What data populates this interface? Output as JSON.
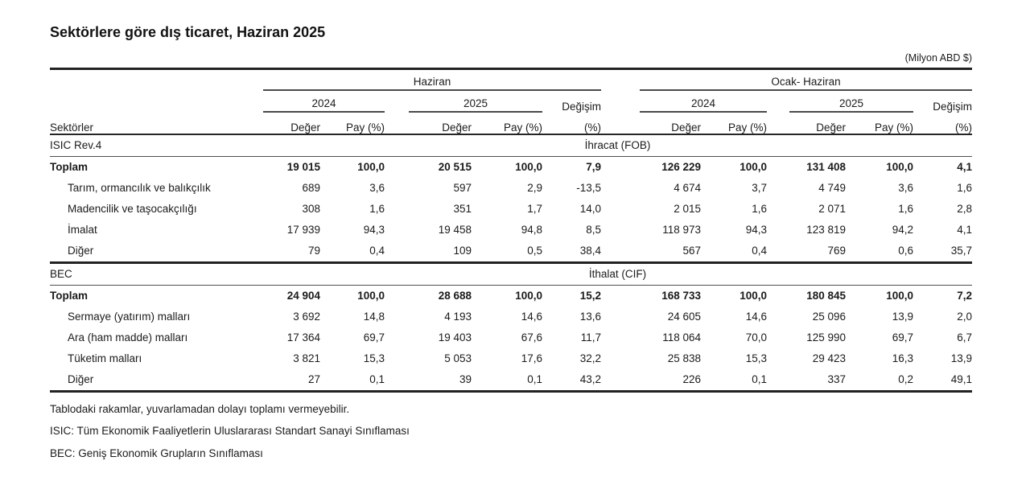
{
  "page": {
    "title": "Sektörlere göre dış ticaret, Haziran 2025",
    "unit_note": "(Milyon ABD $)"
  },
  "table": {
    "groups": {
      "haziran": "Haziran",
      "ocak_haziran": "Ocak- Haziran",
      "y2024": "2024",
      "y2025": "2025"
    },
    "headers": {
      "sektorler": "Sektörler",
      "deger": "Değer",
      "pay": "Pay (%)",
      "degisim": "Değişim",
      "pct": "(%)"
    },
    "sections": [
      {
        "code": "ISIC Rev.4",
        "label": "İhracat (FOB)",
        "rows": [
          {
            "name": "Toplam",
            "bold": true,
            "values": [
              "19 015",
              "100,0",
              "20 515",
              "100,0",
              "7,9",
              "126 229",
              "100,0",
              "131 408",
              "100,0",
              "4,1"
            ]
          },
          {
            "name": "Tarım, ormancılık ve balıkçılık",
            "bold": false,
            "values": [
              "689",
              "3,6",
              "597",
              "2,9",
              "-13,5",
              "4 674",
              "3,7",
              "4 749",
              "3,6",
              "1,6"
            ]
          },
          {
            "name": "Madencilik ve taşocakçılığı",
            "bold": false,
            "values": [
              "308",
              "1,6",
              "351",
              "1,7",
              "14,0",
              "2 015",
              "1,6",
              "2 071",
              "1,6",
              "2,8"
            ]
          },
          {
            "name": "İmalat",
            "bold": false,
            "values": [
              "17 939",
              "94,3",
              "19 458",
              "94,8",
              "8,5",
              "118 973",
              "94,3",
              "123 819",
              "94,2",
              "4,1"
            ]
          },
          {
            "name": "Diğer",
            "bold": false,
            "values": [
              "79",
              "0,4",
              "109",
              "0,5",
              "38,4",
              "567",
              "0,4",
              "769",
              "0,6",
              "35,7"
            ]
          }
        ]
      },
      {
        "code": "BEC",
        "label": "İthalat (CIF)",
        "rows": [
          {
            "name": "Toplam",
            "bold": true,
            "values": [
              "24 904",
              "100,0",
              "28 688",
              "100,0",
              "15,2",
              "168 733",
              "100,0",
              "180 845",
              "100,0",
              "7,2"
            ]
          },
          {
            "name": "Sermaye (yatırım) malları",
            "bold": false,
            "values": [
              "3 692",
              "14,8",
              "4 193",
              "14,6",
              "13,6",
              "24 605",
              "14,6",
              "25 096",
              "13,9",
              "2,0"
            ]
          },
          {
            "name": "Ara (ham madde) malları",
            "bold": false,
            "values": [
              "17 364",
              "69,7",
              "19 403",
              "67,6",
              "11,7",
              "118 064",
              "70,0",
              "125 990",
              "69,7",
              "6,7"
            ]
          },
          {
            "name": "Tüketim malları",
            "bold": false,
            "values": [
              "3 821",
              "15,3",
              "5 053",
              "17,6",
              "32,2",
              "25 838",
              "15,3",
              "29 423",
              "16,3",
              "13,9"
            ]
          },
          {
            "name": "Diğer",
            "bold": false,
            "values": [
              "27",
              "0,1",
              "39",
              "0,1",
              "43,2",
              "226",
              "0,1",
              "337",
              "0,2",
              "49,1"
            ]
          }
        ]
      }
    ]
  },
  "footnotes": [
    "Tablodaki rakamlar, yuvarlamadan dolayı toplamı vermeyebilir.",
    "ISIC: Tüm Ekonomik Faaliyetlerin Uluslararası Standart Sanayi Sınıflaması",
    "BEC: Geniş Ekonomik Grupların Sınıflaması"
  ]
}
